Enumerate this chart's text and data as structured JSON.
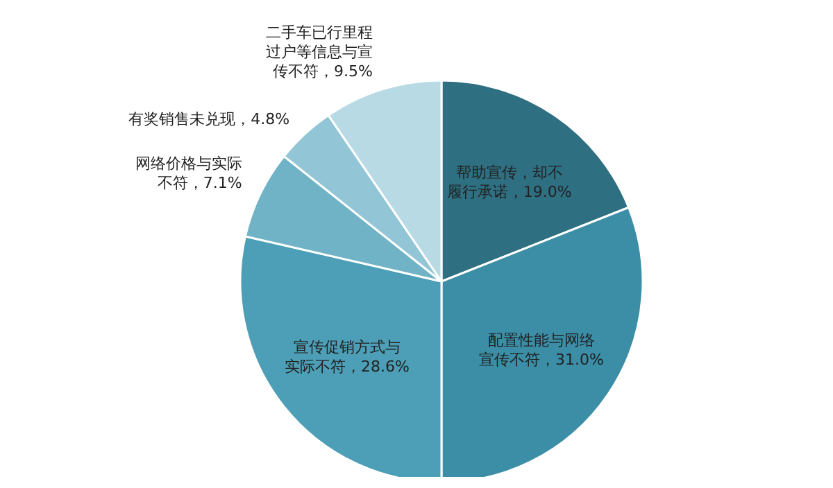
{
  "chart_data": {
    "type": "pie",
    "categories": [
      "帮助宣传，却不履行承诺",
      "配置性能与网络宣传不符",
      "宣传促销方式与实际不符",
      "网络价格与实际不符",
      "有奖销售未兑现",
      "二手车已行里程过户等信息与宣传不符"
    ],
    "values": [
      19.0,
      31.0,
      28.6,
      7.1,
      4.8,
      9.5
    ],
    "colors": [
      "#2f6f82",
      "#3b8ea6",
      "#4c9fb6",
      "#70b3c7",
      "#92c6d6",
      "#b8dae5"
    ],
    "value_labels": [
      "，19.0%",
      "，31.0%",
      "，28.6%",
      "，7.1%",
      "，4.8%",
      "，9.5%"
    ],
    "legend": false
  }
}
